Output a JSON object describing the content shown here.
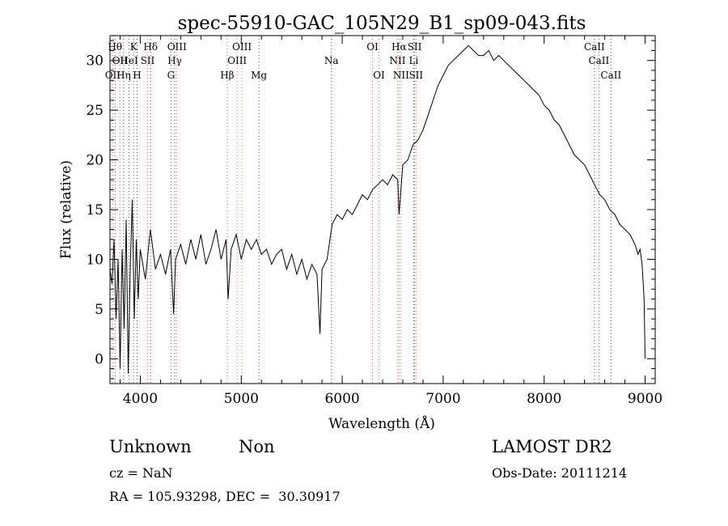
{
  "chart_data": {
    "type": "line",
    "title": "spec-55910-GAC_105N29_B1_sp09-043.fits",
    "xlabel": "Wavelength (Å)",
    "ylabel": "Flux (relative)",
    "xlim": [
      3700,
      9100
    ],
    "ylim": [
      -2.5,
      32.5
    ],
    "xticks": [
      4000,
      5000,
      6000,
      7000,
      8000,
      9000
    ],
    "yticks": [
      0,
      5,
      10,
      15,
      20,
      25,
      30
    ],
    "series": [
      {
        "x": [
          3700,
          3720,
          3740,
          3760,
          3780,
          3800,
          3820,
          3840,
          3860,
          3880,
          3900,
          3920,
          3940,
          3960,
          3980,
          4000,
          4050,
          4100,
          4150,
          4200,
          4250,
          4300,
          4330,
          4350,
          4400,
          4450,
          4500,
          4550,
          4600,
          4650,
          4700,
          4750,
          4800,
          4850,
          4870,
          4900,
          4950,
          5000,
          5050,
          5100,
          5150,
          5200,
          5250,
          5300,
          5350,
          5400,
          5450,
          5500,
          5550,
          5600,
          5650,
          5700,
          5750,
          5780,
          5800,
          5850,
          5900,
          5950,
          6000,
          6050,
          6100,
          6150,
          6200,
          6250,
          6300,
          6350,
          6400,
          6450,
          6500,
          6550,
          6563,
          6600,
          6650,
          6700,
          6750,
          6800,
          6850,
          6900,
          6950,
          7000,
          7050,
          7100,
          7150,
          7200,
          7250,
          7300,
          7350,
          7400,
          7450,
          7500,
          7550,
          7600,
          7650,
          7700,
          7750,
          7800,
          7850,
          7900,
          7950,
          8000,
          8050,
          8100,
          8150,
          8200,
          8250,
          8300,
          8350,
          8400,
          8450,
          8500,
          8550,
          8600,
          8650,
          8700,
          8750,
          8800,
          8850,
          8900,
          8930,
          8950,
          8970,
          8990,
          9000
        ],
        "values": [
          9.0,
          7.5,
          12.0,
          4.0,
          10.0,
          -1.0,
          11.0,
          3.0,
          14.0,
          -1.5,
          9.0,
          16.0,
          4.0,
          12.0,
          6.0,
          11.0,
          8.0,
          13.0,
          9.0,
          10.5,
          8.5,
          11.0,
          4.5,
          10.0,
          11.5,
          9.5,
          12.0,
          10.0,
          12.5,
          9.5,
          11.0,
          13.0,
          10.0,
          12.0,
          6.0,
          11.0,
          12.5,
          10.0,
          12.0,
          11.0,
          12.0,
          10.5,
          11.0,
          9.5,
          10.5,
          11.0,
          9.0,
          10.5,
          8.5,
          10.0,
          8.0,
          9.5,
          8.5,
          2.5,
          9.0,
          10.0,
          13.5,
          14.5,
          14.0,
          15.0,
          14.5,
          15.5,
          16.5,
          16.0,
          17.0,
          17.5,
          18.0,
          17.5,
          18.5,
          18.0,
          14.5,
          19.5,
          20.0,
          21.5,
          22.0,
          23.0,
          24.5,
          26.0,
          27.5,
          28.5,
          29.5,
          30.0,
          30.5,
          31.0,
          31.5,
          31.0,
          30.5,
          30.5,
          31.0,
          30.0,
          30.5,
          30.0,
          29.5,
          29.0,
          28.5,
          28.0,
          27.5,
          27.0,
          26.5,
          25.5,
          25.0,
          24.0,
          23.5,
          22.5,
          21.5,
          20.5,
          20.0,
          19.5,
          18.5,
          17.5,
          16.5,
          16.0,
          15.0,
          14.5,
          13.5,
          13.0,
          12.5,
          11.5,
          10.5,
          11.0,
          9.5,
          6.0,
          0.0
        ]
      }
    ],
    "lines": [
      {
        "wavelength": 3727,
        "label": "OII",
        "row": 2
      },
      {
        "wavelength": 3750,
        "label": "Hθ",
        "row": 0
      },
      {
        "wavelength": 3798,
        "label": "OII",
        "row": 1
      },
      {
        "wavelength": 3835,
        "label": "Hη",
        "row": 2
      },
      {
        "wavelength": 3889,
        "label": "HeI",
        "row": 1
      },
      {
        "wavelength": 3934,
        "label": "K",
        "row": 0
      },
      {
        "wavelength": 3968,
        "label": "H",
        "row": 2
      },
      {
        "wavelength": 4072,
        "label": "SII",
        "row": 1
      },
      {
        "wavelength": 4102,
        "label": "Hδ",
        "row": 0
      },
      {
        "wavelength": 4304,
        "label": "G",
        "row": 2
      },
      {
        "wavelength": 4341,
        "label": "Hγ",
        "row": 1
      },
      {
        "wavelength": 4363,
        "label": "OIII",
        "row": 0
      },
      {
        "wavelength": 4861,
        "label": "Hβ",
        "row": 2
      },
      {
        "wavelength": 4959,
        "label": "OIII",
        "row": 1
      },
      {
        "wavelength": 5007,
        "label": "OIII",
        "row": 0
      },
      {
        "wavelength": 5175,
        "label": "Mg",
        "row": 2
      },
      {
        "wavelength": 5893,
        "label": "Na",
        "row": 1
      },
      {
        "wavelength": 6300,
        "label": "OI",
        "row": 0
      },
      {
        "wavelength": 6364,
        "label": "OI",
        "row": 2
      },
      {
        "wavelength": 6548,
        "label": "NII",
        "row": 1
      },
      {
        "wavelength": 6563,
        "label": "Hα",
        "row": 0
      },
      {
        "wavelength": 6583,
        "label": "NII",
        "row": 2
      },
      {
        "wavelength": 6708,
        "label": "Li",
        "row": 1
      },
      {
        "wavelength": 6717,
        "label": "SII",
        "row": 0
      },
      {
        "wavelength": 6731,
        "label": "SII",
        "row": 2
      },
      {
        "wavelength": 8498,
        "label": "CaII",
        "row": 0
      },
      {
        "wavelength": 8542,
        "label": "CaII",
        "row": 1
      },
      {
        "wavelength": 8662,
        "label": "CaII",
        "row": 2
      }
    ]
  },
  "info": {
    "class": "Unknown",
    "subclass": "Non",
    "survey": "LAMOST DR2",
    "cz": "cz = NaN",
    "obs_date": "Obs-Date: 20111214",
    "coords": "RA = 105.93298, DEC =  30.30917"
  },
  "colors": {
    "spectrum": "#000000",
    "emission_line": "#e06060",
    "absorption_line": "#555555"
  }
}
